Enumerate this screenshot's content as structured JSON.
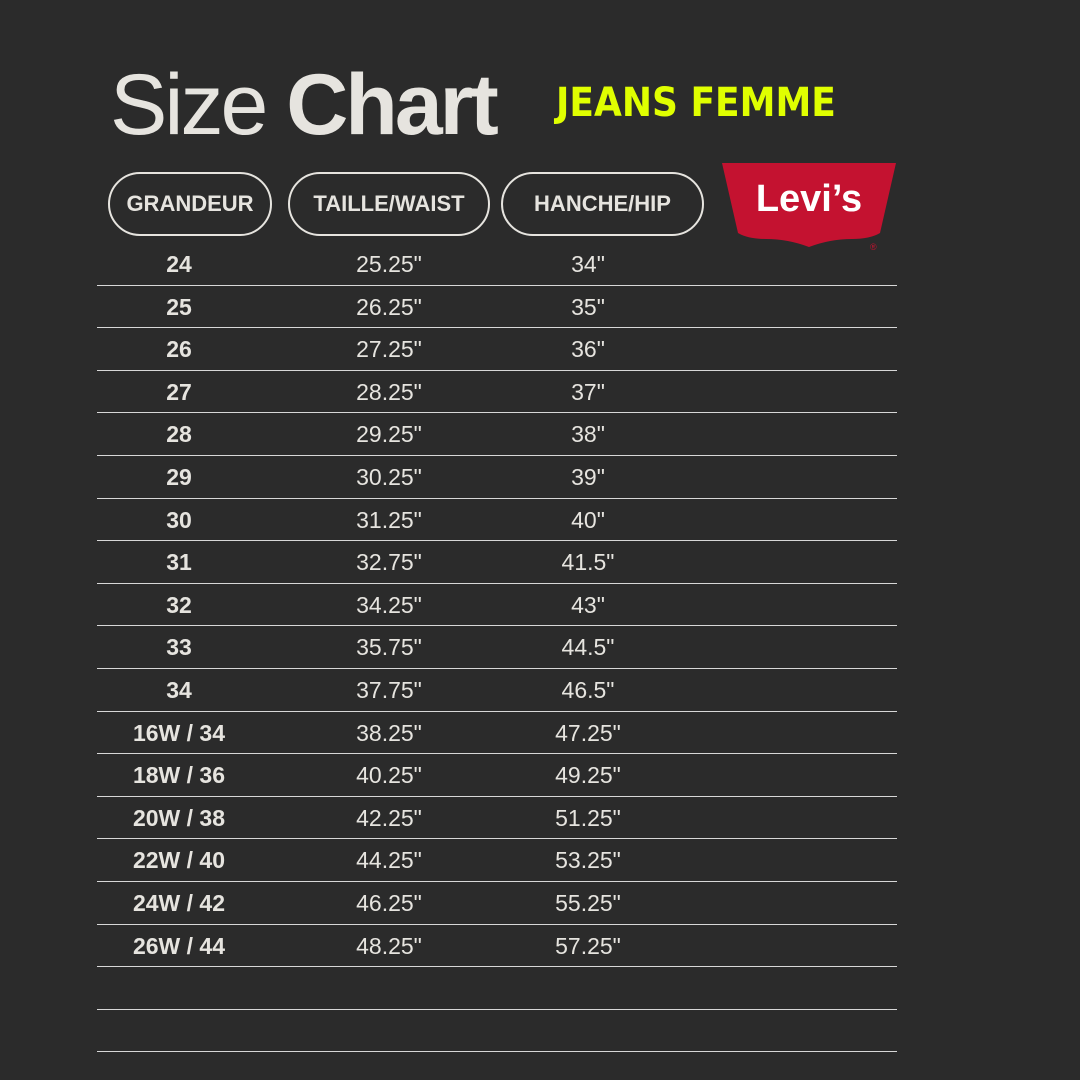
{
  "title": {
    "light": "Size",
    "bold": "Chart",
    "subtitle": "JEANS FEMME"
  },
  "headers": [
    "GRANDEUR",
    "TAILLE/WAIST",
    "HANCHE/HIP"
  ],
  "logo": {
    "text": "Levi's",
    "color": "#c41230",
    "mark": "®"
  },
  "accent_color": "#e0ff00",
  "rows": [
    [
      "24",
      "25.25\"",
      "34\""
    ],
    [
      "25",
      "26.25\"",
      "35\""
    ],
    [
      "26",
      "27.25\"",
      "36\""
    ],
    [
      "27",
      "28.25\"",
      "37\""
    ],
    [
      "28",
      "29.25\"",
      "38\""
    ],
    [
      "29",
      "30.25\"",
      "39\""
    ],
    [
      "30",
      "31.25\"",
      "40\""
    ],
    [
      "31",
      "32.75\"",
      "41.5\""
    ],
    [
      "32",
      "34.25\"",
      "43\""
    ],
    [
      "33",
      "35.75\"",
      "44.5\""
    ],
    [
      "34",
      "37.75\"",
      "46.5\""
    ],
    [
      "16W / 34",
      "38.25\"",
      "47.25\""
    ],
    [
      "18W / 36",
      "40.25\"",
      "49.25\""
    ],
    [
      "20W / 38",
      "42.25\"",
      "51.25\""
    ],
    [
      "22W / 40",
      "44.25\"",
      "53.25\""
    ],
    [
      "24W / 42",
      "46.25\"",
      "55.25\""
    ],
    [
      "26W / 44",
      "48.25\"",
      "57.25\""
    ],
    [
      "",
      "",
      ""
    ],
    [
      "",
      "",
      ""
    ]
  ]
}
